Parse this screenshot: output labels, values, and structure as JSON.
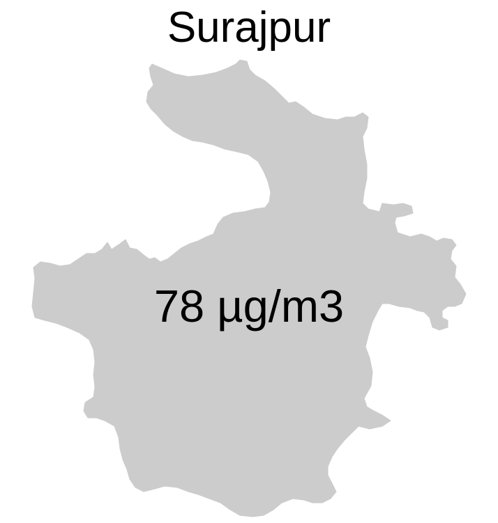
{
  "map": {
    "region_name": "Surajpur",
    "value_label": "78 µg/m3",
    "fill_color": "#cccccc",
    "background_color": "#ffffff",
    "text_color": "#000000"
  }
}
